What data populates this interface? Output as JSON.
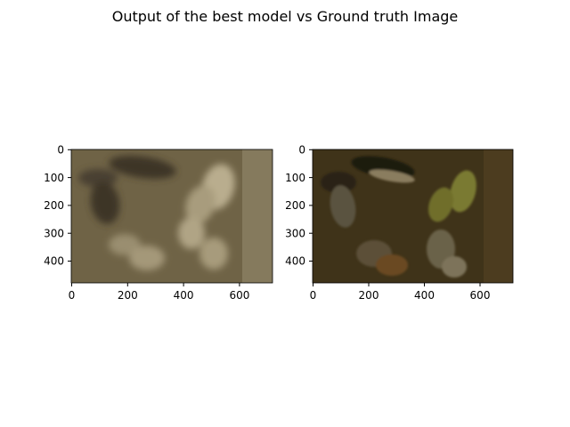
{
  "figure": {
    "title": "Output of the best model vs Ground truth Image"
  },
  "panels": [
    {
      "id": "left",
      "name": "model-output",
      "xticks": [
        "0",
        "200",
        "400",
        "600"
      ],
      "yticks": [
        "0",
        "100",
        "200",
        "300",
        "400"
      ],
      "x_range": [
        0,
        720
      ],
      "y_range": [
        480,
        0
      ],
      "colors": {
        "bg": "#6f6346",
        "dark": "#3d3526",
        "light": "#b9ad8e",
        "floor_right": "#857a5d"
      }
    },
    {
      "id": "right",
      "name": "ground-truth",
      "xticks": [
        "0",
        "200",
        "400",
        "600"
      ],
      "yticks": [
        "0",
        "100",
        "200",
        "300",
        "400"
      ],
      "x_range": [
        0,
        720
      ],
      "y_range": [
        480,
        0
      ],
      "colors": {
        "bg": "#3f3319",
        "dark": "#1f1a10",
        "light": "#8a7d5f",
        "accent": "#7a7a30",
        "floor_right": "#4c3c1f"
      }
    }
  ]
}
